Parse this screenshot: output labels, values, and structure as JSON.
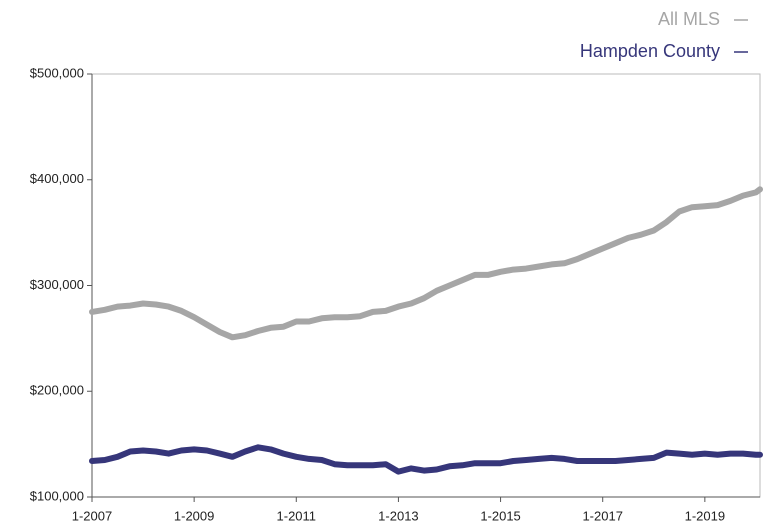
{
  "chart_data": {
    "type": "line",
    "x": [
      2007,
      2007.25,
      2007.5,
      2007.75,
      2008,
      2008.25,
      2008.5,
      2008.75,
      2009,
      2009.25,
      2009.5,
      2009.75,
      2010,
      2010.25,
      2010.5,
      2010.75,
      2011,
      2011.25,
      2011.5,
      2011.75,
      2012,
      2012.25,
      2012.5,
      2012.75,
      2013,
      2013.25,
      2013.5,
      2013.75,
      2014,
      2014.25,
      2014.5,
      2014.75,
      2015,
      2015.25,
      2015.5,
      2015.75,
      2016,
      2016.25,
      2016.5,
      2016.75,
      2017,
      2017.25,
      2017.5,
      2017.75,
      2018,
      2018.25,
      2018.5,
      2018.75,
      2019,
      2019.25,
      2019.5,
      2019.75,
      2020,
      2020.08
    ],
    "series": [
      {
        "name": "All MLS",
        "color": "#a6a6a6",
        "values": [
          275000,
          277000,
          280000,
          281000,
          283000,
          282000,
          280000,
          276000,
          270000,
          263000,
          256000,
          251000,
          253000,
          257000,
          260000,
          261000,
          266000,
          266000,
          269000,
          270000,
          270000,
          271000,
          275000,
          276000,
          280000,
          283000,
          288000,
          295000,
          300000,
          305000,
          310000,
          310000,
          313000,
          315000,
          316000,
          318000,
          320000,
          321000,
          325000,
          330000,
          335000,
          340000,
          345000,
          348000,
          352000,
          360000,
          370000,
          374000,
          375000,
          376000,
          380000,
          385000,
          388000,
          391000
        ]
      },
      {
        "name": "Hampden County",
        "color": "#36367a",
        "values": [
          134000,
          135000,
          138000,
          143000,
          144000,
          143000,
          141000,
          144000,
          145000,
          144000,
          141000,
          138000,
          143000,
          147000,
          145000,
          141000,
          138000,
          136000,
          135000,
          131000,
          130000,
          130000,
          130000,
          131000,
          124000,
          127000,
          125000,
          126000,
          129000,
          130000,
          132000,
          132000,
          132000,
          134000,
          135000,
          136000,
          137000,
          136000,
          134000,
          134000,
          134000,
          134000,
          135000,
          136000,
          137000,
          142000,
          141000,
          140000,
          141000,
          140000,
          141000,
          141000,
          140000,
          140000
        ]
      }
    ],
    "xlim": [
      2007,
      2020.08
    ],
    "xticks": [
      {
        "value": 2007,
        "label": "1-2007"
      },
      {
        "value": 2009,
        "label": "1-2009"
      },
      {
        "value": 2011,
        "label": "1-2011"
      },
      {
        "value": 2013,
        "label": "1-2013"
      },
      {
        "value": 2015,
        "label": "1-2015"
      },
      {
        "value": 2017,
        "label": "1-2017"
      },
      {
        "value": 2019,
        "label": "1-2019"
      }
    ],
    "ylim": [
      100000,
      500000
    ],
    "yticks": [
      {
        "value": 100000,
        "label": "$100,000"
      },
      {
        "value": 200000,
        "label": "$200,000"
      },
      {
        "value": 300000,
        "label": "$300,000"
      },
      {
        "value": 400000,
        "label": "$400,000"
      },
      {
        "value": 500000,
        "label": "$500,000"
      }
    ],
    "grid": false,
    "legend": "top-right"
  }
}
